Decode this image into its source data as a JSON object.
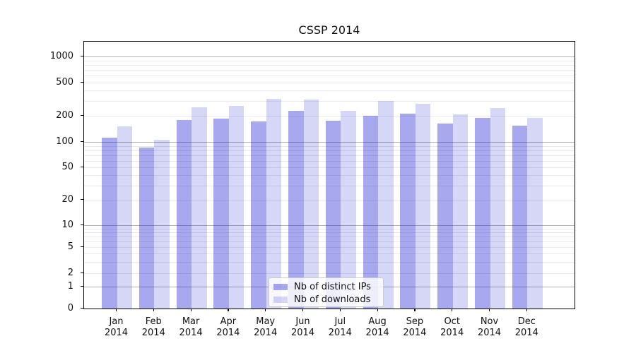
{
  "title": "CSSP 2014",
  "legend": {
    "items": [
      {
        "label": "Nb of distinct IPs",
        "color": "rgba(0,0,204,0.34)"
      },
      {
        "label": "Nb of downloads",
        "color": "rgba(0,0,204,0.16)"
      }
    ],
    "position": "lower center inside plot"
  },
  "chart_data": {
    "type": "bar",
    "title": "CSSP 2014",
    "categories": [
      "Jan 2014",
      "Feb 2014",
      "Mar 2014",
      "Apr 2014",
      "May 2014",
      "Jun 2014",
      "Jul 2014",
      "Aug 2014",
      "Sep 2014",
      "Oct 2014",
      "Nov 2014",
      "Dec 2014"
    ],
    "series": [
      {
        "name": "Nb of distinct IPs",
        "values": [
          112,
          86,
          178,
          185,
          171,
          228,
          175,
          200,
          212,
          163,
          190,
          155
        ]
      },
      {
        "name": "Nb of downloads",
        "values": [
          152,
          105,
          251,
          264,
          322,
          312,
          229,
          303,
          281,
          208,
          247,
          188
        ]
      }
    ],
    "xlabel": "",
    "ylabel": "",
    "yscale": "symlog",
    "ylim": [
      0,
      1400
    ],
    "yticks": [
      0,
      1,
      2,
      5,
      10,
      20,
      50,
      100,
      200,
      500,
      1000
    ],
    "grid": {
      "orientation": "horizontal",
      "major_values": [
        1,
        10,
        100,
        1000
      ],
      "minor_values": [
        2,
        3,
        4,
        5,
        6,
        7,
        8,
        9,
        20,
        30,
        40,
        50,
        60,
        70,
        80,
        90,
        200,
        300,
        400,
        500,
        600,
        700,
        800,
        900
      ]
    },
    "legend_position": "lower center"
  },
  "colors": {
    "bar_dark": "rgba(0,0,204,0.34)",
    "bar_light": "rgba(0,0,204,0.16)",
    "grid_major": "#b0b0b0",
    "grid_minor": "#e9e9ef",
    "spine": "#000000"
  }
}
